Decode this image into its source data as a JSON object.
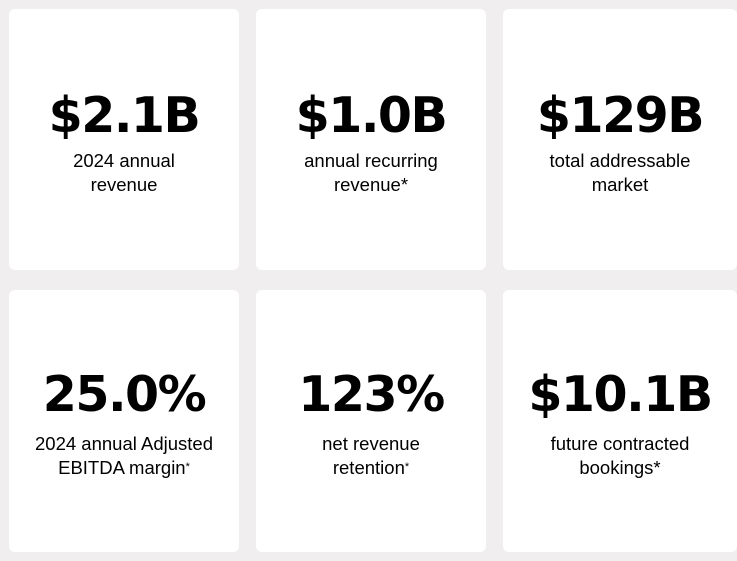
{
  "metrics": [
    {
      "value": "$2.1B",
      "line1": "2024 annual",
      "line2": "revenue",
      "star": ""
    },
    {
      "value": "$1.0B",
      "line1": "annual recurring",
      "line2": "revenue*",
      "star": ""
    },
    {
      "value": "$129B",
      "line1": "total addressable",
      "line2": "market",
      "star": ""
    },
    {
      "value": "25.0%",
      "line1": "2024 annual Adjusted",
      "line2": "EBITDA margin",
      "star": "*"
    },
    {
      "value": "123%",
      "line1": "net revenue",
      "line2": "retention",
      "star": "*"
    },
    {
      "value": "$10.1B",
      "line1": "future contracted",
      "line2": "bookings*",
      "star": ""
    }
  ]
}
